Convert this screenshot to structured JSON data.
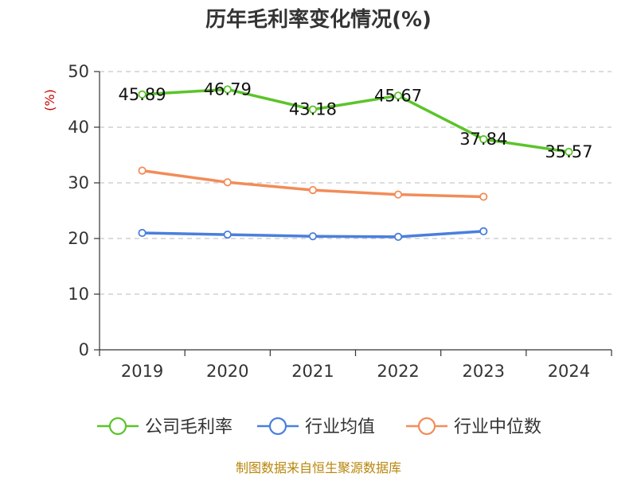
{
  "chart_data": {
    "type": "line",
    "title": "历年毛利率变化情况(%)",
    "ylabel": "(%)",
    "xlabel": "",
    "categories": [
      "2019",
      "2020",
      "2021",
      "2022",
      "2023",
      "2024"
    ],
    "ylim": [
      0,
      50
    ],
    "yticks": [
      "0",
      "10",
      "20",
      "30",
      "40",
      "50"
    ],
    "grid": true,
    "legend_position": "bottom",
    "series": [
      {
        "name": "公司毛利率",
        "color": "#5bc42a",
        "values": [
          45.89,
          46.79,
          43.18,
          45.67,
          37.84,
          35.57
        ],
        "labels": [
          "45.89",
          "46.79",
          "43.18",
          "45.67",
          "37.84",
          "35.57"
        ]
      },
      {
        "name": "行业均值",
        "color": "#4a7fdc",
        "values": [
          21.0,
          20.7,
          20.4,
          20.3,
          21.3,
          null
        ]
      },
      {
        "name": "行业中位数",
        "color": "#f28c58",
        "values": [
          32.2,
          30.1,
          28.7,
          27.9,
          27.5,
          null
        ]
      }
    ]
  },
  "source": "制图数据来自恒生聚源数据库"
}
